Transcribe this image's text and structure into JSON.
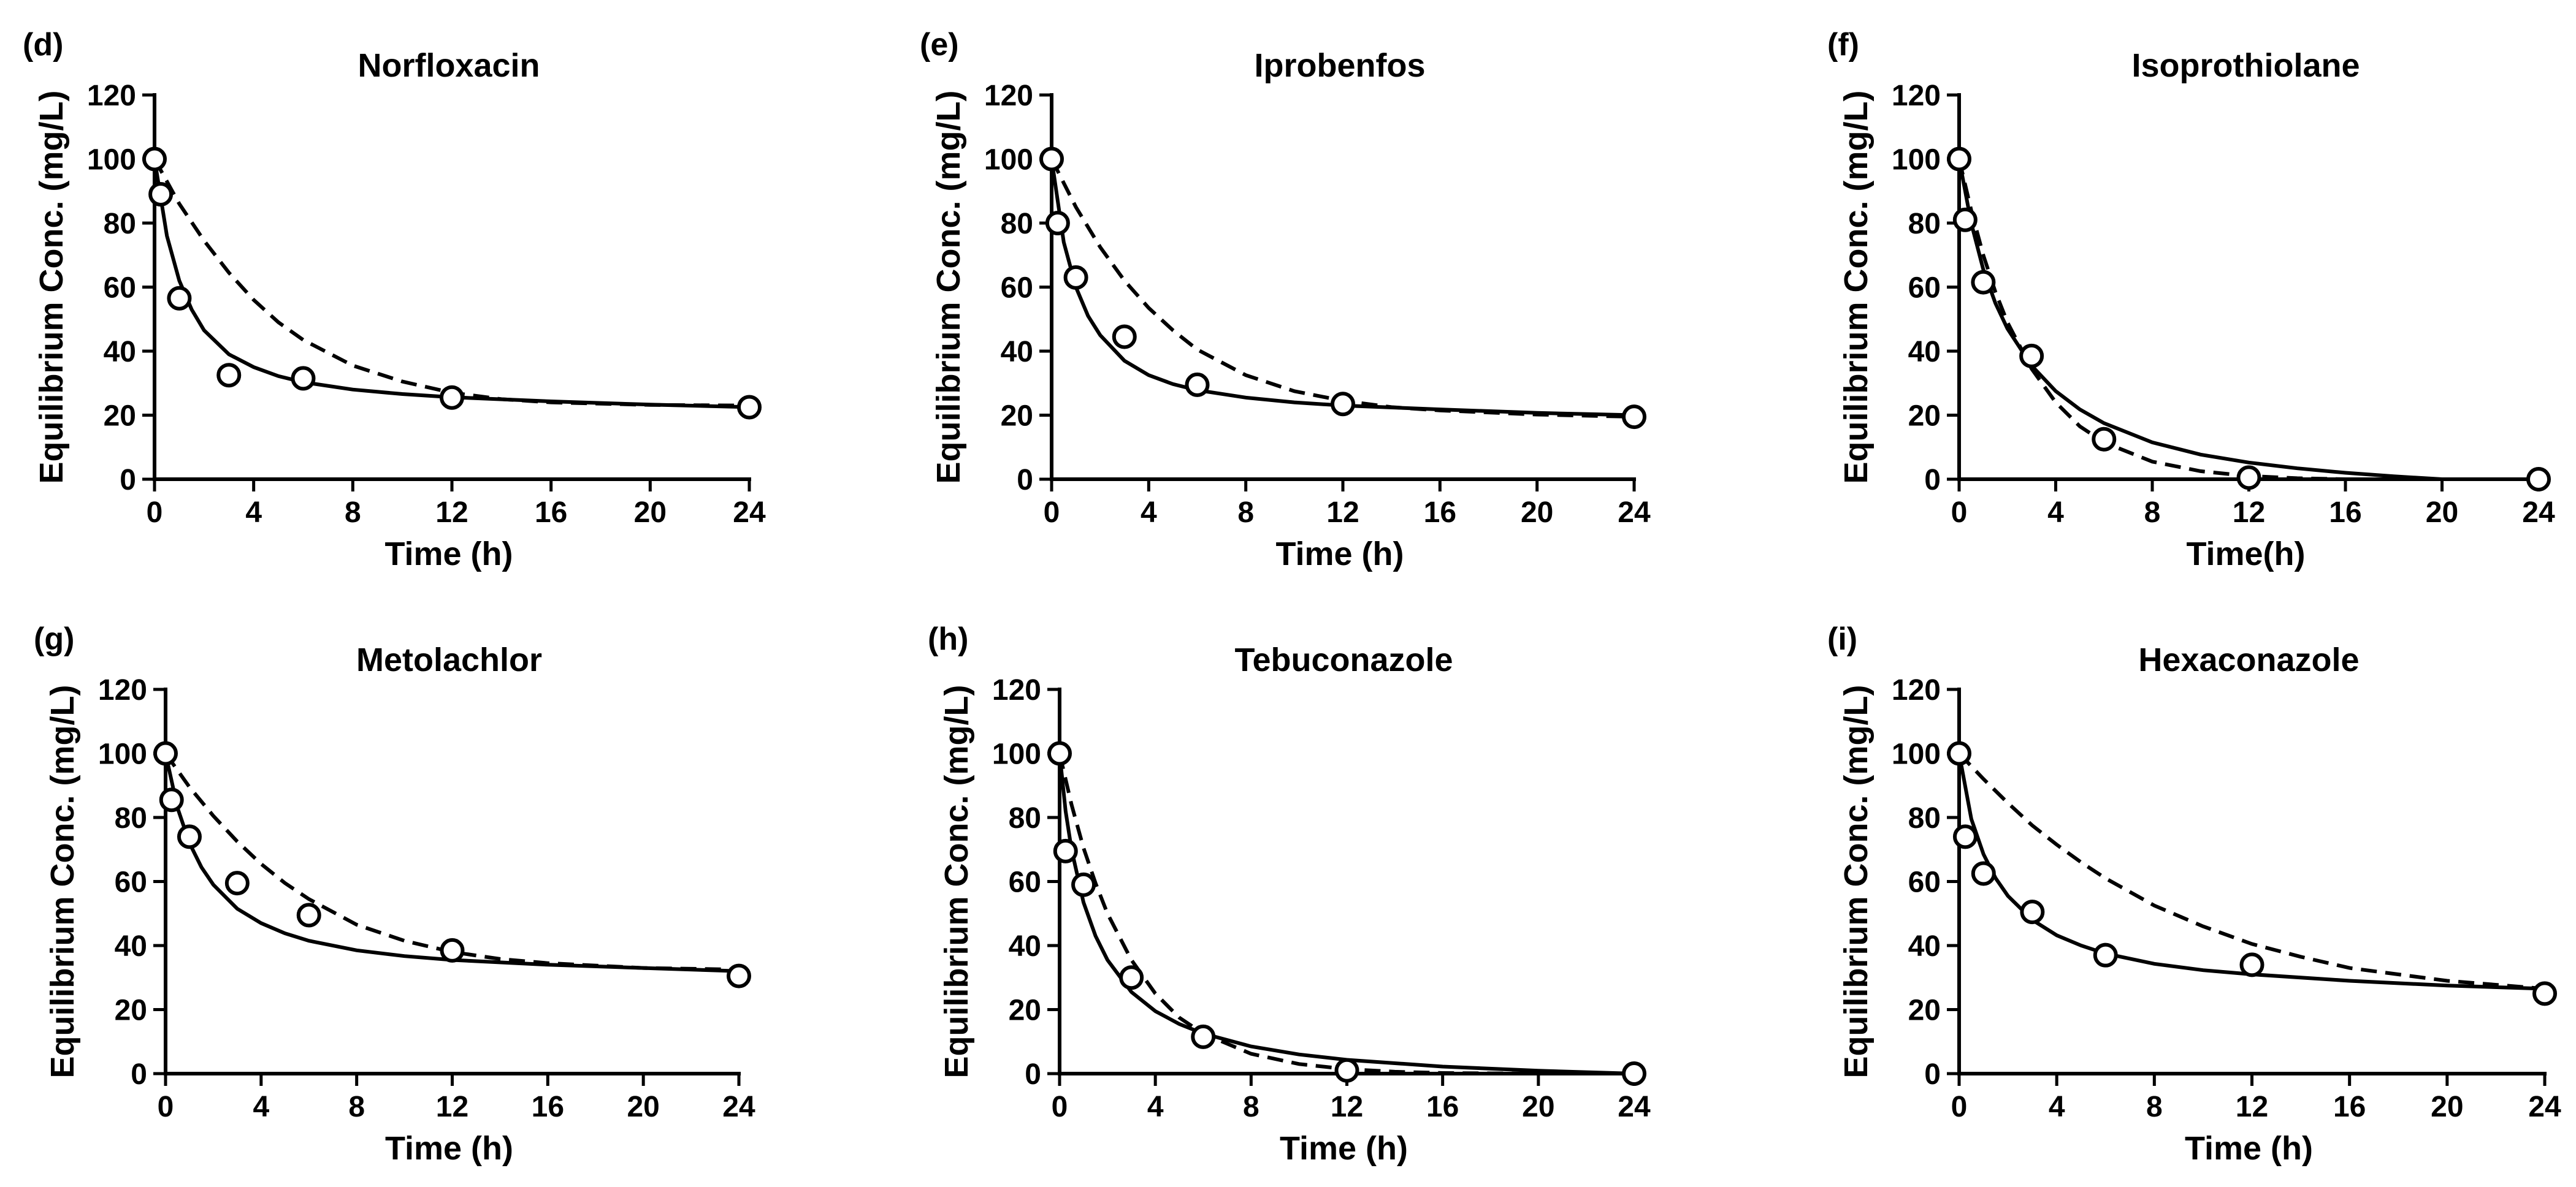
{
  "axes_common": {
    "ylabel": "Equilibrium Conc. (mg/L)",
    "xticks": [
      0,
      4,
      8,
      12,
      16,
      20,
      24
    ],
    "yticks": [
      0,
      20,
      40,
      60,
      80,
      100,
      120
    ],
    "xlim": [
      0,
      24
    ],
    "ylim": [
      0,
      120
    ]
  },
  "chart_data": [
    {
      "panel": "(d)",
      "title": "Norfloxacin",
      "type": "scatter",
      "xlabel": "Time (h)",
      "ylabel": "Equilibrium Conc. (mg/L)",
      "xlim": [
        0,
        24
      ],
      "ylim": [
        0,
        120
      ],
      "points": {
        "x": [
          0,
          0.25,
          1,
          3,
          6,
          12,
          24
        ],
        "y": [
          100,
          89,
          56.5,
          32.5,
          31.5,
          25.5,
          22.5
        ]
      },
      "fit_solid": {
        "x": [
          0,
          0.5,
          1,
          1.5,
          2,
          3,
          4,
          5,
          6,
          8,
          10,
          12,
          16,
          20,
          24
        ],
        "y": [
          100,
          76,
          62,
          53,
          46.5,
          39,
          35,
          32.2,
          30.3,
          28,
          26.6,
          25.6,
          24.3,
          23.3,
          22.5
        ]
      },
      "fit_dashed": {
        "x": [
          0,
          1,
          2,
          3,
          4,
          5,
          6,
          8,
          10,
          12,
          14,
          16,
          20,
          24
        ],
        "y": [
          100,
          86,
          74.5,
          64.5,
          56,
          49,
          43.5,
          35.5,
          30.5,
          27,
          25,
          24,
          23.2,
          23
        ]
      }
    },
    {
      "panel": "(e)",
      "title": "Iprobenfos",
      "type": "scatter",
      "xlabel": "Time (h)",
      "ylabel": "Equilibrium Conc. (mg/L)",
      "xlim": [
        0,
        24
      ],
      "ylim": [
        0,
        120
      ],
      "points": {
        "x": [
          0,
          0.25,
          1,
          3,
          6,
          12,
          24
        ],
        "y": [
          100,
          80,
          63,
          44.5,
          29.5,
          23.5,
          19.5
        ]
      },
      "fit_solid": {
        "x": [
          0,
          0.5,
          1,
          1.5,
          2,
          3,
          4,
          5,
          6,
          8,
          10,
          12,
          16,
          20,
          24
        ],
        "y": [
          100,
          74,
          60,
          51,
          45,
          37,
          32.5,
          29.7,
          27.8,
          25.5,
          24,
          23,
          21.8,
          20.7,
          20
        ]
      },
      "fit_dashed": {
        "x": [
          0,
          1,
          2,
          3,
          4,
          5,
          6,
          8,
          10,
          12,
          14,
          16,
          20,
          24
        ],
        "y": [
          100,
          85,
          72.5,
          62,
          53.5,
          46.5,
          40.5,
          32.5,
          27.5,
          24.5,
          22.5,
          21.5,
          20.2,
          19.5
        ]
      }
    },
    {
      "panel": "(f)",
      "title": "Isoprothiolane",
      "type": "scatter",
      "xlabel": "Time(h)",
      "ylabel": "Equilibrium Conc. (mg/L)",
      "xlim": [
        0,
        24
      ],
      "ylim": [
        0,
        120
      ],
      "points": {
        "x": [
          0,
          0.25,
          1,
          3,
          6,
          12,
          24
        ],
        "y": [
          100,
          81,
          61.5,
          38.5,
          12.5,
          0.5,
          0
        ]
      },
      "fit_solid": {
        "x": [
          0,
          0.5,
          1,
          1.5,
          2,
          3,
          4,
          5,
          6,
          8,
          10,
          12,
          14,
          16,
          18,
          20,
          24
        ],
        "y": [
          100,
          80,
          65.5,
          55,
          47,
          35.5,
          27.5,
          21.8,
          17.5,
          11.5,
          7.7,
          5.2,
          3.4,
          2,
          0.9,
          0,
          0
        ]
      },
      "fit_dashed": {
        "x": [
          0,
          0.5,
          1,
          1.5,
          2,
          3,
          4,
          5,
          6,
          8,
          10,
          12,
          14,
          16,
          20,
          24
        ],
        "y": [
          100,
          84,
          70,
          58.5,
          49,
          34.5,
          24,
          16.5,
          11.5,
          5.5,
          2.5,
          1,
          0.3,
          0,
          0,
          0
        ]
      }
    },
    {
      "panel": "(g)",
      "title": "Metolachlor",
      "type": "scatter",
      "xlabel": "Time (h)",
      "ylabel": "Equilibrium Conc. (mg/L)",
      "xlim": [
        0,
        24
      ],
      "ylim": [
        0,
        120
      ],
      "points": {
        "x": [
          0,
          0.25,
          1,
          3,
          6,
          12,
          24
        ],
        "y": [
          100,
          85.5,
          74,
          59.5,
          49.5,
          38.5,
          30.5
        ]
      },
      "fit_solid": {
        "x": [
          0,
          0.5,
          1,
          1.5,
          2,
          3,
          4,
          5,
          6,
          8,
          10,
          12,
          16,
          20,
          24
        ],
        "y": [
          100,
          83,
          72,
          64.5,
          59,
          51.5,
          47,
          43.8,
          41.5,
          38.5,
          36.7,
          35.5,
          34,
          33,
          32
        ]
      },
      "fit_dashed": {
        "x": [
          0,
          1,
          2,
          3,
          4,
          5,
          6,
          8,
          10,
          12,
          14,
          16,
          20,
          24
        ],
        "y": [
          100,
          89.5,
          80.5,
          72.5,
          65.5,
          59.5,
          54.5,
          46.5,
          41.5,
          38,
          35.8,
          34.5,
          33,
          32.5
        ]
      }
    },
    {
      "panel": "(h)",
      "title": "Tebuconazole",
      "type": "scatter",
      "xlabel": "Time (h)",
      "ylabel": "Equilibrium Conc. (mg/L)",
      "xlim": [
        0,
        24
      ],
      "ylim": [
        0,
        120
      ],
      "points": {
        "x": [
          0,
          0.25,
          1,
          3,
          6,
          12,
          24
        ],
        "y": [
          100,
          69.5,
          59,
          30,
          11.5,
          1,
          0
        ]
      },
      "fit_solid": {
        "x": [
          0,
          0.25,
          0.5,
          1,
          1.5,
          2,
          3,
          4,
          5,
          6,
          8,
          10,
          12,
          16,
          20,
          24
        ],
        "y": [
          100,
          82,
          70,
          53.5,
          43,
          35.5,
          25.5,
          19.5,
          15.5,
          12.5,
          8.5,
          6,
          4.3,
          2.2,
          0.9,
          0
        ]
      },
      "fit_dashed": {
        "x": [
          0,
          0.5,
          1,
          1.5,
          2,
          3,
          4,
          5,
          6,
          8,
          10,
          12,
          14,
          16,
          20,
          24
        ],
        "y": [
          100,
          84,
          70.5,
          59.5,
          50,
          35.5,
          25,
          17.5,
          12.5,
          6.2,
          3,
          1.4,
          0.6,
          0.2,
          0,
          0
        ]
      }
    },
    {
      "panel": "(i)",
      "title": "Hexaconazole",
      "type": "scatter",
      "xlabel": "Time (h)",
      "ylabel": "Equilibrium Conc. (mg/L)",
      "xlim": [
        0,
        24
      ],
      "ylim": [
        0,
        120
      ],
      "points": {
        "x": [
          0,
          0.25,
          1,
          3,
          6,
          12,
          24
        ],
        "y": [
          100,
          74,
          62.5,
          50.5,
          37,
          34,
          25
        ]
      },
      "fit_solid": {
        "x": [
          0,
          0.5,
          1,
          1.5,
          2,
          3,
          4,
          5,
          6,
          8,
          10,
          12,
          16,
          20,
          24
        ],
        "y": [
          100,
          79.5,
          68.5,
          61,
          55.5,
          48,
          43.2,
          40,
          37.5,
          34.3,
          32.3,
          31,
          29,
          27.5,
          26.5
        ]
      },
      "fit_dashed": {
        "x": [
          0,
          1,
          2,
          3,
          4,
          5,
          6,
          8,
          10,
          12,
          14,
          16,
          20,
          24
        ],
        "y": [
          100,
          92,
          84.5,
          77.5,
          71.5,
          66,
          61,
          52.5,
          46,
          40.5,
          36.5,
          33,
          29,
          26.5
        ]
      }
    }
  ]
}
